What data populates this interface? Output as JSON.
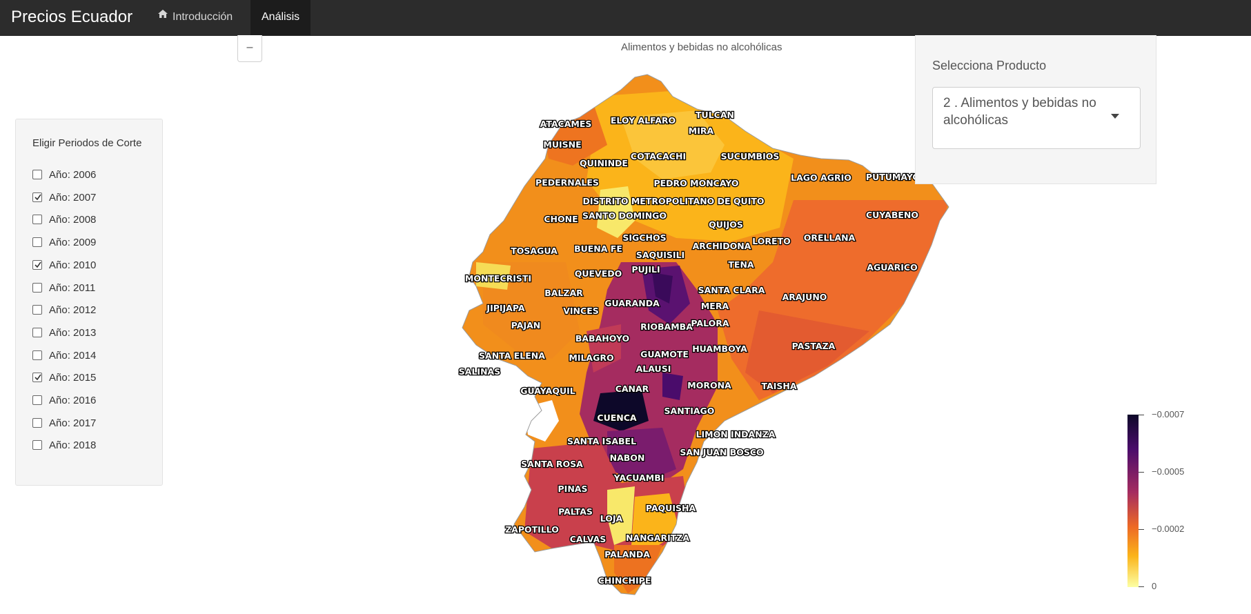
{
  "navbar": {
    "brand": "Precios Ecuador",
    "tabs": [
      {
        "label": "Introducción",
        "icon": "home-icon",
        "active": false
      },
      {
        "label": "Análisis",
        "active": true
      }
    ]
  },
  "zoom_button": {
    "label": "–"
  },
  "sidebar": {
    "title": "Eligir Periodos de Corte",
    "checkboxes": [
      {
        "label": "Año: 2006",
        "checked": false
      },
      {
        "label": "Año: 2007",
        "checked": true
      },
      {
        "label": "Año: 2008",
        "checked": false
      },
      {
        "label": "Año: 2009",
        "checked": false
      },
      {
        "label": "Año: 2010",
        "checked": true
      },
      {
        "label": "Año: 2011",
        "checked": false
      },
      {
        "label": "Año: 2012",
        "checked": false
      },
      {
        "label": "Año: 2013",
        "checked": false
      },
      {
        "label": "Año: 2014",
        "checked": false
      },
      {
        "label": "Año: 2015",
        "checked": true
      },
      {
        "label": "Año: 2016",
        "checked": false
      },
      {
        "label": "Año: 2017",
        "checked": false
      },
      {
        "label": "Año: 2018",
        "checked": false
      }
    ]
  },
  "product_panel": {
    "label": "Selecciona Producto",
    "selected": "2 . Alimentos y bebidas no alcohólicas"
  },
  "map": {
    "title": "Alimentos y bebidas no alcohólicas",
    "colorscale": [
      "#0d0829",
      "#4a0c6b",
      "#a52c60",
      "#ed6925",
      "#fbb41a",
      "#fcffa4"
    ],
    "colorbar_ticks": [
      "−0.0007",
      "−0.0005",
      "−0.0002",
      "0"
    ],
    "labels": [
      "ATACAMES",
      "ELOY ALFARO",
      "TULCAN",
      "MIRA",
      "MUISNE",
      "COTACACHI",
      "QUININDE",
      "SUCUMBIOS",
      "PEDERNALES",
      "PEDRO MONCAYO",
      "LAGO AGRIO",
      "PUTUMAYO",
      "DISTRITO METROPOLITANO DE QUITO",
      "SANTO DOMINGO",
      "CHONE",
      "CUYABENO",
      "QUIJOS",
      "SIGCHOS",
      "ARCHIDONA",
      "LORETO",
      "ORELLANA",
      "TOSAGUA",
      "BUENA FE",
      "SAQUISILI",
      "PUJILI",
      "TENA",
      "QUEVEDO",
      "MONTECRISTI",
      "AGUARICO",
      "SANTA CLARA",
      "BALZAR",
      "GUARANDA",
      "MERA",
      "ARAJUNO",
      "JIPIJAPA",
      "VINCES",
      "PAJAN",
      "RIOBAMBA",
      "PALORA",
      "BABAHOYO",
      "HUAMBOYA",
      "PASTAZA",
      "GUAMOTE",
      "SANTA ELENA",
      "MILAGRO",
      "ALAUSI",
      "SALINAS",
      "MORONA",
      "TAISHA",
      "GUAYAQUIL",
      "CANAR",
      "SANTIAGO",
      "CUENCA",
      "LIMON INDANZA",
      "SANTA ISABEL",
      "SAN JUAN BOSCO",
      "NABON",
      "SANTA ROSA",
      "YACUAMBI",
      "PINAS",
      "PAQUISHA",
      "PALTAS",
      "LOJA",
      "ZAPOTILLO",
      "NANGARITZA",
      "CALVAS",
      "PALANDA",
      "CHINCHIPE"
    ]
  }
}
